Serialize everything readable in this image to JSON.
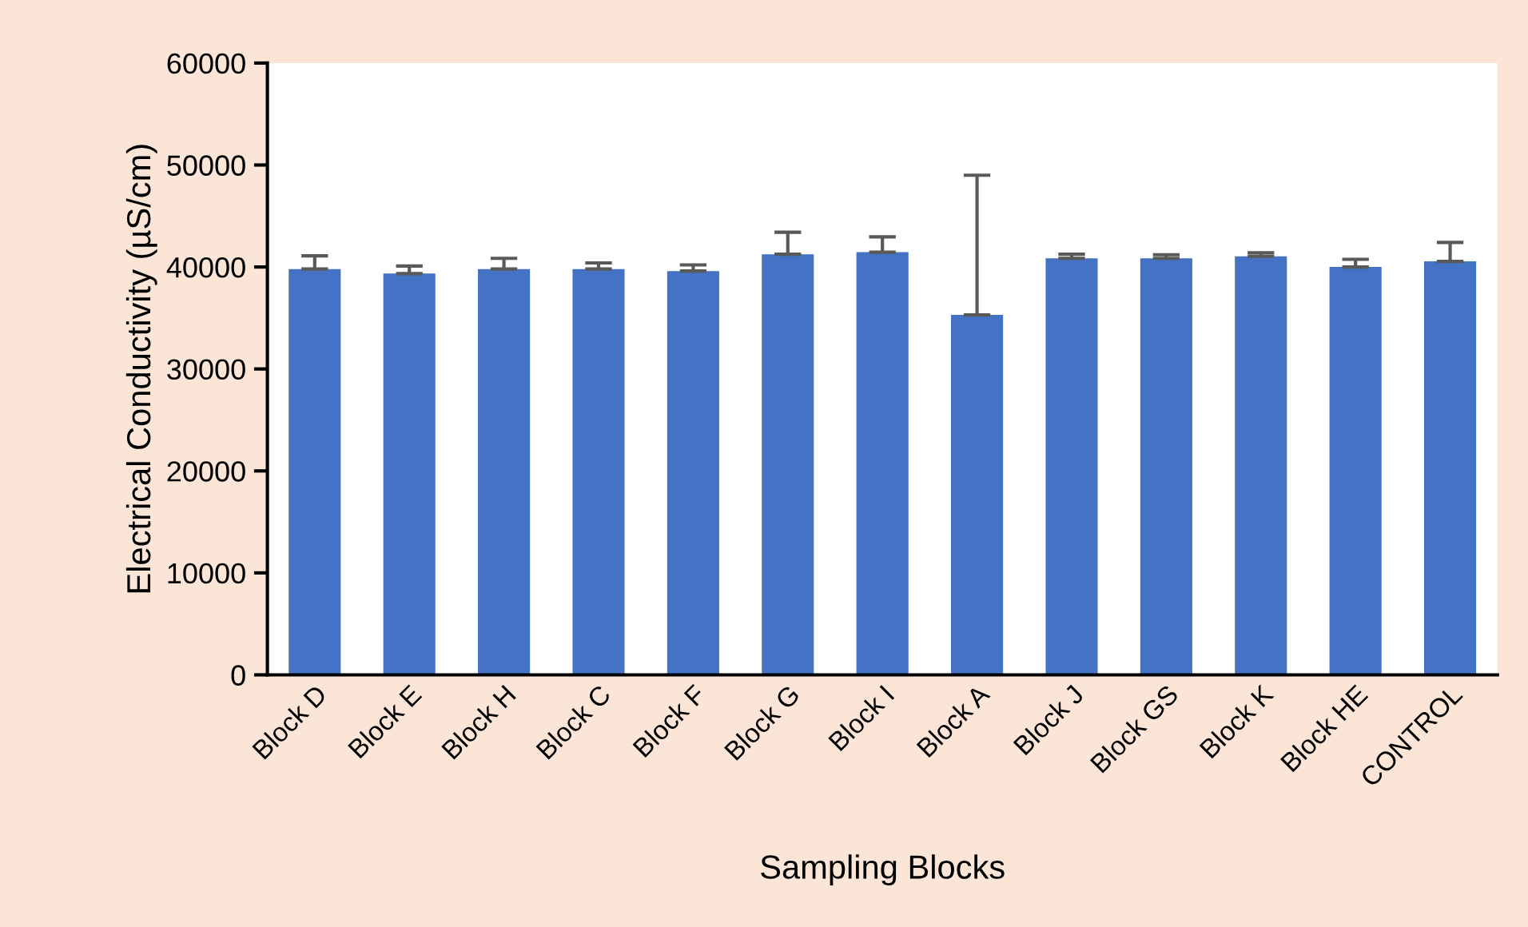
{
  "chart_data": {
    "type": "bar",
    "xlabel": "Sampling Blocks",
    "ylabel": "Electrical Conductivity (µS/cm)",
    "categories": [
      "Block D",
      "Block E",
      "Block H",
      "Block C",
      "Block F",
      "Block G",
      "Block I",
      "Block A",
      "Block J",
      "Block GS",
      "Block K",
      "Block HE",
      "CONTROL"
    ],
    "values": [
      39800,
      39350,
      39800,
      39800,
      39600,
      41250,
      41450,
      35300,
      40850,
      40850,
      41050,
      40000,
      40550
    ],
    "errors": [
      [
        39800,
        41100
      ],
      [
        39350,
        40100
      ],
      [
        39800,
        40850
      ],
      [
        39800,
        40400
      ],
      [
        39600,
        40200
      ],
      [
        41250,
        43400
      ],
      [
        41450,
        42950
      ],
      [
        35300,
        49000
      ],
      [
        40850,
        41250
      ],
      [
        40850,
        41200
      ],
      [
        41050,
        41400
      ],
      [
        40000,
        40750
      ],
      [
        40550,
        42400
      ]
    ],
    "color": "#4472c4",
    "ylim": [
      0,
      60000
    ],
    "yticks": [
      0,
      10000,
      20000,
      30000,
      40000,
      50000,
      60000
    ],
    "grid": false,
    "legend": false
  }
}
